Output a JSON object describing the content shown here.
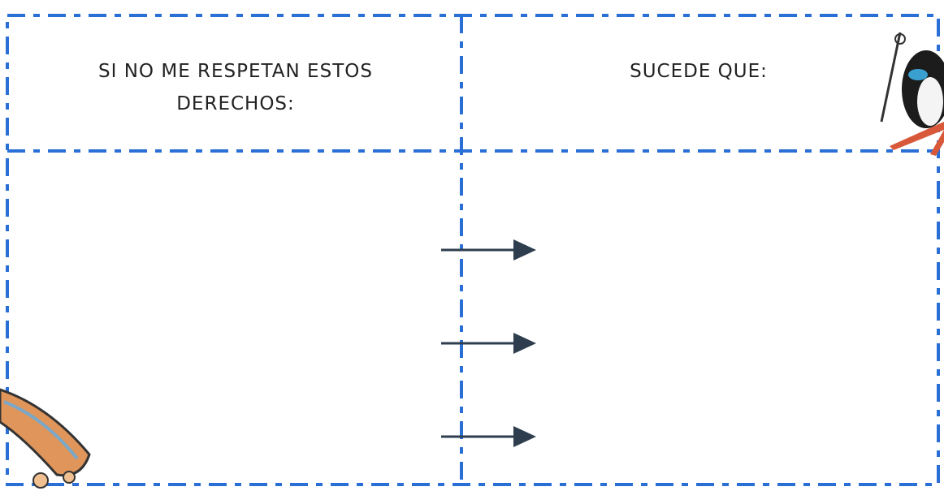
{
  "table": {
    "headers": [
      "SI NO ME RESPETAN ESTOS DERECHOS:",
      "SUCEDE QUE:"
    ]
  }
}
